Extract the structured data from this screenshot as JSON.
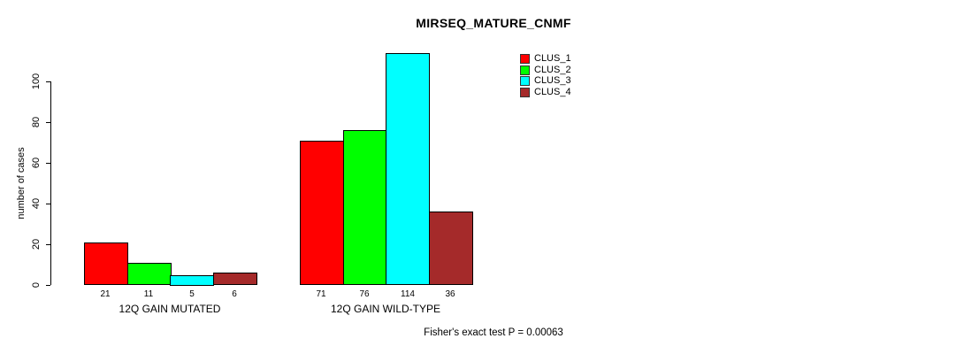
{
  "chart_data": {
    "type": "bar",
    "title": "MIRSEQ_MATURE_CNMF",
    "ylabel": "number of cases",
    "xlabel": "",
    "footer": "Fisher's exact test P = 0.00063",
    "categories": [
      "12Q GAIN MUTATED",
      "12Q GAIN WILD-TYPE"
    ],
    "series": [
      {
        "name": "CLUS_1",
        "color": "#ff0000",
        "values": [
          21,
          71
        ]
      },
      {
        "name": "CLUS_2",
        "color": "#00ff00",
        "values": [
          11,
          76
        ]
      },
      {
        "name": "CLUS_3",
        "color": "#00ffff",
        "values": [
          5,
          114
        ]
      },
      {
        "name": "CLUS_4",
        "color": "#a52a2a",
        "values": [
          6,
          36
        ]
      }
    ],
    "yticks": [
      0,
      20,
      40,
      60,
      80,
      100
    ],
    "ylim": [
      0,
      114
    ],
    "grid": false,
    "legend_position": "top-right",
    "bar_value_labels_shown": true,
    "background_color": "#ffffff",
    "axis_color": "#000000"
  }
}
